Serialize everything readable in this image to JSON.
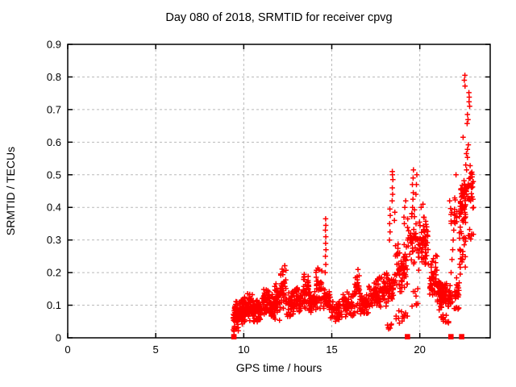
{
  "chart_data": {
    "type": "scatter",
    "title": "Day 080 of 2018, SRMTID for receiver cpvg",
    "xlabel": "GPS time / hours",
    "ylabel": "SRMTID / TECUs",
    "xlim": [
      0,
      24
    ],
    "ylim": [
      0,
      0.9
    ],
    "x_ticks": [
      0,
      5,
      10,
      15,
      20
    ],
    "x_tick_labels": [
      "0",
      "5",
      "10",
      "15",
      "20"
    ],
    "y_ticks": [
      0,
      0.1,
      0.2,
      0.3,
      0.4,
      0.5,
      0.6,
      0.7,
      0.8,
      0.9
    ],
    "y_tick_labels": [
      "0",
      "0.1",
      "0.2",
      "0.3",
      "0.4",
      "0.5",
      "0.6",
      "0.7",
      "0.8",
      "0.9"
    ],
    "grid": "dashed-major-both",
    "legend": "none",
    "marker": "plus",
    "marker_color": "#ff0000",
    "grid_color": "#b9b9b9",
    "border_color": "#000000",
    "background_color": "#ffffff",
    "scatter_seed": 20180080,
    "series": [
      {
        "name": "SRMTID",
        "marker": "plus",
        "points": [
          [
            9.44,
            0.005
          ],
          [
            9.45,
            0.02
          ],
          [
            9.47,
            0.035
          ],
          [
            14.63,
            0.2
          ],
          [
            14.66,
            0.225
          ],
          [
            14.64,
            0.25
          ],
          [
            14.67,
            0.27
          ],
          [
            14.65,
            0.29
          ],
          [
            14.66,
            0.31
          ],
          [
            14.64,
            0.33
          ],
          [
            14.66,
            0.345
          ],
          [
            14.65,
            0.365
          ],
          [
            18.28,
            0.3
          ],
          [
            18.31,
            0.325
          ],
          [
            18.29,
            0.35
          ],
          [
            18.32,
            0.375
          ],
          [
            18.3,
            0.395
          ],
          [
            18.43,
            0.42
          ],
          [
            18.46,
            0.44
          ],
          [
            18.44,
            0.46
          ],
          [
            18.47,
            0.485
          ],
          [
            18.45,
            0.5
          ],
          [
            18.44,
            0.51
          ],
          [
            18.56,
            0.36
          ],
          [
            18.58,
            0.385
          ],
          [
            19.1,
            0.37
          ],
          [
            19.15,
            0.4
          ],
          [
            19.2,
            0.42
          ],
          [
            19.12,
            0.35
          ],
          [
            19.56,
            0.38
          ],
          [
            19.59,
            0.4
          ],
          [
            19.61,
            0.425
          ],
          [
            19.63,
            0.445
          ],
          [
            19.58,
            0.47
          ],
          [
            19.62,
            0.49
          ],
          [
            19.64,
            0.515
          ],
          [
            19.78,
            0.44
          ],
          [
            19.81,
            0.47
          ],
          [
            19.83,
            0.5
          ],
          [
            20.08,
            0.4
          ],
          [
            20.18,
            0.41
          ],
          [
            21.66,
            0.12
          ],
          [
            21.72,
            0.16
          ],
          [
            21.78,
            0.2
          ],
          [
            21.83,
            0.24
          ],
          [
            21.87,
            0.27
          ],
          [
            21.9,
            0.3
          ],
          [
            21.93,
            0.33
          ],
          [
            21.96,
            0.355
          ],
          [
            21.98,
            0.38
          ],
          [
            22.06,
            0.5
          ],
          [
            22.56,
            0.805
          ],
          [
            22.53,
            0.79
          ],
          [
            22.57,
            0.772
          ],
          [
            22.79,
            0.752
          ],
          [
            22.81,
            0.738
          ],
          [
            22.8,
            0.724
          ],
          [
            22.83,
            0.71
          ],
          [
            22.71,
            0.685
          ],
          [
            22.74,
            0.669
          ],
          [
            22.69,
            0.657
          ],
          [
            22.46,
            0.615
          ],
          [
            22.76,
            0.592
          ],
          [
            22.71,
            0.578
          ],
          [
            22.65,
            0.565
          ],
          [
            22.71,
            0.553
          ],
          [
            22.61,
            0.53
          ],
          [
            22.66,
            0.515
          ],
          [
            22.86,
            0.528
          ],
          [
            22.96,
            0.508
          ],
          [
            22.51,
            0.482
          ],
          [
            22.62,
            0.462
          ],
          [
            22.87,
            0.49
          ],
          [
            22.91,
            0.468
          ],
          [
            23.02,
            0.425
          ],
          [
            23.05,
            0.4
          ]
        ],
        "clusters": [
          {
            "x0": 9.4,
            "x1": 9.75,
            "n": 55,
            "y0": 0.015,
            "y1": 0.115
          },
          {
            "x0": 9.75,
            "x1": 10.2,
            "n": 60,
            "y0": 0.04,
            "y1": 0.13
          },
          {
            "x0": 10.2,
            "x1": 10.55,
            "n": 50,
            "y0": 0.05,
            "y1": 0.145
          },
          {
            "x0": 10.55,
            "x1": 11.05,
            "n": 55,
            "y0": 0.035,
            "y1": 0.12
          },
          {
            "x0": 11.05,
            "x1": 11.45,
            "n": 50,
            "y0": 0.06,
            "y1": 0.16
          },
          {
            "x0": 11.45,
            "x1": 11.75,
            "n": 40,
            "y0": 0.05,
            "y1": 0.135
          },
          {
            "x0": 11.75,
            "x1": 12.1,
            "n": 45,
            "y0": 0.045,
            "y1": 0.175
          },
          {
            "x0": 12.1,
            "x1": 12.4,
            "n": 40,
            "y0": 0.08,
            "y1": 0.225
          },
          {
            "x0": 12.4,
            "x1": 12.95,
            "n": 55,
            "y0": 0.05,
            "y1": 0.155
          },
          {
            "x0": 12.95,
            "x1": 13.4,
            "n": 45,
            "y0": 0.07,
            "y1": 0.165
          },
          {
            "x0": 13.4,
            "x1": 13.7,
            "n": 35,
            "y0": 0.08,
            "y1": 0.22
          },
          {
            "x0": 13.7,
            "x1": 14.1,
            "n": 40,
            "y0": 0.07,
            "y1": 0.16
          },
          {
            "x0": 14.1,
            "x1": 14.45,
            "n": 35,
            "y0": 0.08,
            "y1": 0.23
          },
          {
            "x0": 14.45,
            "x1": 14.9,
            "n": 35,
            "y0": 0.07,
            "y1": 0.17
          },
          {
            "x0": 14.9,
            "x1": 15.6,
            "n": 55,
            "y0": 0.045,
            "y1": 0.13
          },
          {
            "x0": 15.6,
            "x1": 16.3,
            "n": 55,
            "y0": 0.055,
            "y1": 0.155
          },
          {
            "x0": 16.3,
            "x1": 16.6,
            "n": 30,
            "y0": 0.07,
            "y1": 0.225
          },
          {
            "x0": 16.6,
            "x1": 17.1,
            "n": 45,
            "y0": 0.06,
            "y1": 0.15
          },
          {
            "x0": 17.1,
            "x1": 17.6,
            "n": 45,
            "y0": 0.08,
            "y1": 0.18
          },
          {
            "x0": 17.6,
            "x1": 18.1,
            "n": 50,
            "y0": 0.09,
            "y1": 0.21
          },
          {
            "x0": 18.1,
            "x1": 18.6,
            "n": 45,
            "y0": 0.1,
            "y1": 0.22
          },
          {
            "x0": 18.1,
            "x1": 18.4,
            "n": 6,
            "y0": 0.02,
            "y1": 0.06
          },
          {
            "x0": 18.6,
            "x1": 19.3,
            "n": 70,
            "y0": 0.13,
            "y1": 0.3
          },
          {
            "x0": 18.6,
            "x1": 19.3,
            "n": 12,
            "y0": 0.035,
            "y1": 0.1
          },
          {
            "x0": 19.3,
            "x1": 19.9,
            "n": 42,
            "y0": 0.22,
            "y1": 0.4
          },
          {
            "x0": 19.55,
            "x1": 19.95,
            "n": 8,
            "y0": 0.08,
            "y1": 0.16
          },
          {
            "x0": 19.9,
            "x1": 20.5,
            "n": 60,
            "y0": 0.2,
            "y1": 0.38
          },
          {
            "x0": 20.5,
            "x1": 21.0,
            "n": 45,
            "y0": 0.11,
            "y1": 0.27
          },
          {
            "x0": 21.0,
            "x1": 21.55,
            "n": 80,
            "y0": 0.08,
            "y1": 0.19
          },
          {
            "x0": 21.2,
            "x1": 21.65,
            "n": 12,
            "y0": 0.04,
            "y1": 0.08
          },
          {
            "x0": 21.55,
            "x1": 21.85,
            "n": 20,
            "y0": 0.07,
            "y1": 0.16
          },
          {
            "x0": 21.6,
            "x1": 22.25,
            "n": 16,
            "y0": 0.33,
            "y1": 0.455
          },
          {
            "x0": 21.95,
            "x1": 22.25,
            "n": 25,
            "y0": 0.06,
            "y1": 0.2
          },
          {
            "x0": 22.25,
            "x1": 22.6,
            "n": 40,
            "y0": 0.15,
            "y1": 0.5
          },
          {
            "x0": 22.3,
            "x1": 22.6,
            "n": 30,
            "y0": 0.37,
            "y1": 0.5
          },
          {
            "x0": 22.6,
            "x1": 23.05,
            "n": 28,
            "y0": 0.37,
            "y1": 0.53
          },
          {
            "x0": 22.6,
            "x1": 23.05,
            "n": 7,
            "y0": 0.28,
            "y1": 0.345
          }
        ]
      },
      {
        "name": "zero-flags",
        "marker": "filled-square",
        "points": [
          [
            9.44,
            0
          ],
          [
            19.3,
            0
          ],
          [
            21.77,
            0
          ],
          [
            22.38,
            0
          ]
        ]
      }
    ]
  }
}
